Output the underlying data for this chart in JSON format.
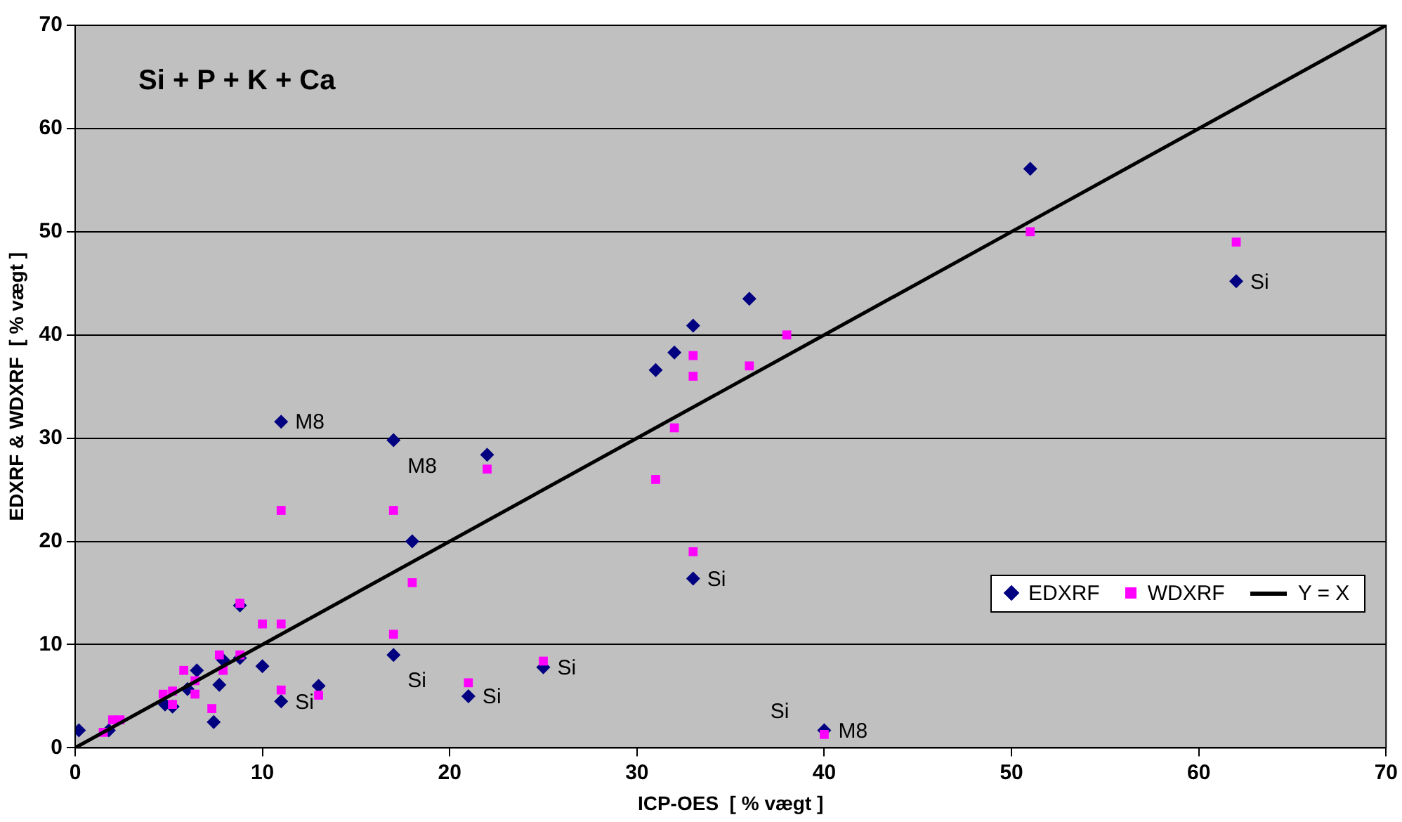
{
  "chart_data": {
    "type": "scatter",
    "xlabel": "ICP-OES  [ % vægt ]",
    "ylabel": "EDXRF & WDXRF  [ % vægt ]",
    "xlim": [
      0,
      70
    ],
    "ylim": [
      0,
      70
    ],
    "xticks": [
      0,
      10,
      20,
      30,
      40,
      50,
      60,
      70
    ],
    "yticks": [
      0,
      10,
      20,
      30,
      40,
      50,
      60,
      70
    ],
    "grid": "y",
    "legend": "right",
    "series": [
      {
        "name": "EDXRF",
        "color": "#000080",
        "marker": "diamond",
        "x": [
          0.2,
          1.8,
          4.8,
          5.2,
          6,
          6.5,
          7.4,
          7.7,
          7.9,
          8.8,
          8.8,
          10,
          11,
          11,
          13,
          17,
          17,
          18,
          21,
          22,
          25,
          31,
          32,
          33,
          33,
          36,
          40,
          51,
          62
        ],
        "values": [
          1.7,
          1.7,
          4.2,
          4.0,
          5.7,
          7.5,
          2.5,
          6.1,
          8.5,
          8.7,
          13.8,
          7.9,
          4.5,
          31.6,
          6,
          29.8,
          9,
          20,
          5,
          28.4,
          7.8,
          36.6,
          38.3,
          40.9,
          16.4,
          43.5,
          1.7,
          56.1,
          45.2
        ]
      },
      {
        "name": "WDXRF",
        "color": "#ff00ff",
        "marker": "square",
        "x": [
          1.5,
          2,
          2.4,
          4.7,
          5.2,
          5.2,
          5.8,
          6.4,
          6.4,
          7.3,
          7.7,
          7.9,
          8.8,
          8.8,
          10,
          11,
          11,
          11,
          13,
          17,
          17,
          18,
          21,
          22,
          25,
          31,
          32,
          33,
          33,
          33,
          36,
          38,
          40,
          51,
          62
        ],
        "values": [
          1.5,
          2.7,
          2.7,
          5.2,
          5.5,
          4.2,
          7.5,
          5.2,
          6.5,
          3.8,
          9,
          7.5,
          14,
          9,
          12,
          12,
          5.6,
          23,
          5.1,
          23,
          11,
          16,
          6.3,
          27,
          8.4,
          26,
          31,
          38,
          36,
          19,
          37,
          40,
          1.3,
          50,
          49
        ]
      },
      {
        "name": "Y = X",
        "type": "line",
        "color": "#000000",
        "marker": "none",
        "line_style": "solid",
        "x": [
          0,
          70
        ],
        "values": [
          0,
          70
        ]
      }
    ],
    "annotations": [
      "Si + P + K + Ca",
      {
        "text": "M8",
        "x": 11,
        "y": 31.6
      },
      {
        "text": "M8",
        "x": 17,
        "y": 29.8
      },
      {
        "text": "M8",
        "x": 40,
        "y": 1.7
      },
      {
        "text": "Si",
        "x": 11,
        "y": 4.5
      },
      {
        "text": "Si",
        "x": 17,
        "y": 9
      },
      {
        "text": "Si",
        "x": 21,
        "y": 5
      },
      {
        "text": "Si",
        "x": 25,
        "y": 7.8
      },
      {
        "text": "Si",
        "x": 33,
        "y": 16.4
      },
      {
        "text": "Si",
        "x": 62,
        "y": 45.2
      },
      {
        "text": "Si",
        "x": 40,
        "y": 1.3
      }
    ]
  }
}
